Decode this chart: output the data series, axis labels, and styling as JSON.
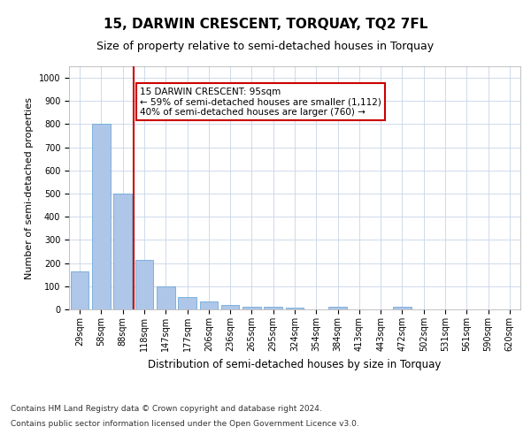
{
  "title": "15, DARWIN CRESCENT, TORQUAY, TQ2 7FL",
  "subtitle": "Size of property relative to semi-detached houses in Torquay",
  "xlabel": "Distribution of semi-detached houses by size in Torquay",
  "ylabel": "Number of semi-detached properties",
  "categories": [
    "29sqm",
    "58sqm",
    "88sqm",
    "118sqm",
    "147sqm",
    "177sqm",
    "206sqm",
    "236sqm",
    "265sqm",
    "295sqm",
    "324sqm",
    "354sqm",
    "384sqm",
    "413sqm",
    "443sqm",
    "472sqm",
    "502sqm",
    "531sqm",
    "561sqm",
    "590sqm",
    "620sqm"
  ],
  "values": [
    165,
    800,
    500,
    213,
    100,
    53,
    35,
    18,
    12,
    10,
    7,
    0,
    10,
    0,
    0,
    10,
    0,
    0,
    0,
    0,
    0
  ],
  "bar_color": "#aec6e8",
  "bar_edge_color": "#5a9fd4",
  "vline_x_index": 2,
  "vline_color": "#cc0000",
  "annotation_text": "15 DARWIN CRESCENT: 95sqm\n← 59% of semi-detached houses are smaller (1,112)\n40% of semi-detached houses are larger (760) →",
  "annotation_box_color": "#ffffff",
  "annotation_box_edge_color": "#cc0000",
  "ylim": [
    0,
    1050
  ],
  "yticks": [
    0,
    100,
    200,
    300,
    400,
    500,
    600,
    700,
    800,
    900,
    1000
  ],
  "footnote1": "Contains HM Land Registry data © Crown copyright and database right 2024.",
  "footnote2": "Contains public sector information licensed under the Open Government Licence v3.0.",
  "title_fontsize": 11,
  "subtitle_fontsize": 9,
  "tick_fontsize": 7,
  "ylabel_fontsize": 8,
  "xlabel_fontsize": 8.5,
  "annotation_fontsize": 7.5,
  "footnote_fontsize": 6.5,
  "background_color": "#ffffff",
  "grid_color": "#c8d4e8"
}
